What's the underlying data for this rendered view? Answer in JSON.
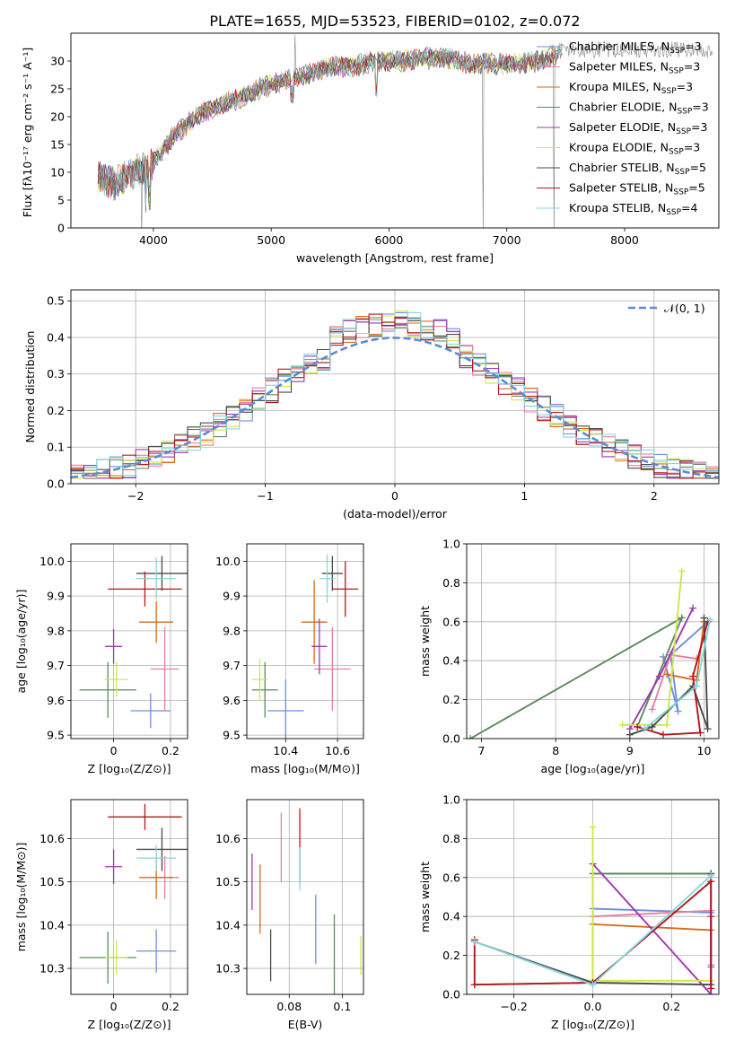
{
  "figure_title": "PLATE=1655, MJD=53523, FIBERID=0102, z=0.072",
  "series_colors": {
    "Chabrier MILES": "#6f8fdc",
    "Salpeter MILES": "#e87fa3",
    "Kroupa MILES": "#d86a1c",
    "Chabrier ELODIE": "#5e8a5e",
    "Salpeter ELODIE": "#9f37b0",
    "Kroupa ELODIE": "#cde64c",
    "Chabrier STELIB": "#4a4a4a",
    "Salpeter STELIB": "#b3171c",
    "Kroupa STELIB": "#87d6dc"
  },
  "chart_data": [
    {
      "id": "spectrum",
      "type": "line",
      "xlabel": "wavelength [Angstrom, rest frame]",
      "ylabel": "Flux [fλ10⁻¹⁷ erg cm⁻² s⁻¹ A⁻¹]",
      "xlim": [
        3300,
        8800
      ],
      "ylim": [
        0,
        35
      ],
      "xticks": [
        4000,
        5000,
        6000,
        7000,
        8000
      ],
      "yticks": [
        0,
        5,
        10,
        15,
        20,
        25,
        30
      ],
      "grid": false,
      "legend_position": "right",
      "legend": [
        {
          "label": "Chabrier MILES, N",
          "sub": "SSP",
          "suffix": "=3"
        },
        {
          "label": "Salpeter MILES, N",
          "sub": "SSP",
          "suffix": "=3"
        },
        {
          "label": "Kroupa MILES, N",
          "sub": "SSP",
          "suffix": "=3"
        },
        {
          "label": "Chabrier ELODIE, N",
          "sub": "SSP",
          "suffix": "=3"
        },
        {
          "label": "Salpeter ELODIE, N",
          "sub": "SSP",
          "suffix": "=3"
        },
        {
          "label": "Kroupa ELODIE, N",
          "sub": "SSP",
          "suffix": "=3"
        },
        {
          "label": "Chabrier STELIB, N",
          "sub": "SSP",
          "suffix": "=5"
        },
        {
          "label": "Salpeter STELIB, N",
          "sub": "SSP",
          "suffix": "=5"
        },
        {
          "label": "Kroupa STELIB, N",
          "sub": "SSP",
          "suffix": "=4"
        }
      ],
      "continuum": {
        "x": [
          3550,
          3650,
          3750,
          3850,
          3950,
          4050,
          4150,
          4250,
          4350,
          4500,
          4700,
          4900,
          5100,
          5300,
          5500,
          5700,
          5900,
          6100,
          6300,
          6500,
          6700,
          6900,
          7100,
          7300,
          7500
        ],
        "y": [
          9,
          8,
          9,
          10,
          11,
          13,
          16,
          18,
          20,
          21.5,
          23,
          25,
          26.5,
          27.5,
          29,
          29,
          30,
          30,
          30.5,
          30.5,
          29.5,
          29.5,
          29.5,
          30,
          32
        ]
      }
    },
    {
      "id": "residuals",
      "type": "histogram",
      "xlabel": "(data-model)/error",
      "ylabel": "Normed distribution",
      "xlim": [
        -2.5,
        2.5
      ],
      "ylim": [
        0,
        0.53
      ],
      "xticks": [
        -2,
        -1,
        0,
        1,
        2
      ],
      "xtick_labels": [
        "−2",
        "−1",
        "0",
        "1",
        "2"
      ],
      "yticks": [
        0.0,
        0.1,
        0.2,
        0.3,
        0.4,
        0.5
      ],
      "grid": true,
      "bin_width": 0.1,
      "legend": [
        "𝒩(0, 1)"
      ],
      "legend_position": "top-right",
      "reference_curve": "gaussian mean 0 sigma 1"
    },
    {
      "id": "age_vs_Z",
      "type": "errorbar",
      "xlabel": "Z [log₁₀(Z/Z⊙)]",
      "ylabel": "age  [log₁₀(age/yr)]",
      "xlim": [
        -0.15,
        0.26
      ],
      "ylim": [
        9.49,
        10.05
      ],
      "xticks": [
        0.0,
        0.2
      ],
      "yticks": [
        9.5,
        9.6,
        9.7,
        9.8,
        9.9,
        10.0
      ],
      "grid": true,
      "points": [
        {
          "series": "Chabrier MILES",
          "x": 0.13,
          "xerr": 0.07,
          "y": 9.57,
          "yerr": 0.05
        },
        {
          "series": "Salpeter MILES",
          "x": 0.18,
          "xerr": 0.05,
          "y": 9.69,
          "yerr": 0.12
        },
        {
          "series": "Kroupa MILES",
          "x": 0.15,
          "xerr": 0.06,
          "y": 9.825,
          "yerr": 0.06
        },
        {
          "series": "Chabrier ELODIE",
          "x": -0.02,
          "xerr": 0.1,
          "y": 9.63,
          "yerr": 0.08
        },
        {
          "series": "Salpeter ELODIE",
          "x": 0.0,
          "xerr": 0.03,
          "y": 9.755,
          "yerr": 0.05
        },
        {
          "series": "Kroupa ELODIE",
          "x": 0.01,
          "xerr": 0.04,
          "y": 9.66,
          "yerr": 0.05
        },
        {
          "series": "Chabrier STELIB",
          "x": 0.17,
          "xerr": 0.09,
          "y": 9.965,
          "yerr": 0.05
        },
        {
          "series": "Salpeter STELIB",
          "x": 0.11,
          "xerr": 0.13,
          "y": 9.92,
          "yerr": 0.05
        },
        {
          "series": "Kroupa STELIB",
          "x": 0.15,
          "xerr": 0.07,
          "y": 9.95,
          "yerr": 0.06
        }
      ]
    },
    {
      "id": "age_vs_mass",
      "type": "errorbar",
      "xlabel": "mass [log₁₀(M/M⊙)]",
      "ylabel": "",
      "xlim": [
        10.25,
        10.7
      ],
      "ylim": [
        9.49,
        10.05
      ],
      "xticks": [
        10.4,
        10.6
      ],
      "yticks": [
        9.5,
        9.6,
        9.7,
        9.8,
        9.9,
        10.0
      ],
      "grid": true,
      "points": [
        {
          "series": "Chabrier MILES",
          "x": 10.4,
          "xerr": 0.07,
          "y": 9.57,
          "yerr": 0.09
        },
        {
          "series": "Salpeter MILES",
          "x": 10.58,
          "xerr": 0.07,
          "y": 9.69,
          "yerr": 0.12
        },
        {
          "series": "Kroupa MILES",
          "x": 10.51,
          "xerr": 0.05,
          "y": 9.825,
          "yerr": 0.12
        },
        {
          "series": "Chabrier ELODIE",
          "x": 10.32,
          "xerr": 0.05,
          "y": 9.63,
          "yerr": 0.08
        },
        {
          "series": "Salpeter ELODIE",
          "x": 10.53,
          "xerr": 0.03,
          "y": 9.755,
          "yerr": 0.08
        },
        {
          "series": "Kroupa ELODIE",
          "x": 10.3,
          "xerr": 0.03,
          "y": 9.66,
          "yerr": 0.06
        },
        {
          "series": "Chabrier STELIB",
          "x": 10.58,
          "xerr": 0.04,
          "y": 9.965,
          "yerr": 0.05
        },
        {
          "series": "Salpeter STELIB",
          "x": 10.63,
          "xerr": 0.05,
          "y": 9.92,
          "yerr": 0.08
        },
        {
          "series": "Kroupa STELIB",
          "x": 10.56,
          "xerr": 0.03,
          "y": 9.95,
          "yerr": 0.07
        }
      ]
    },
    {
      "id": "weight_vs_age",
      "type": "line",
      "xlabel": "age  [log₁₀(age/yr)]",
      "ylabel": "mass weight",
      "xlim": [
        6.8,
        10.2
      ],
      "ylim": [
        0.0,
        1.0
      ],
      "xticks": [
        7,
        8,
        9,
        10
      ],
      "yticks": [
        0.0,
        0.2,
        0.4,
        0.6,
        0.8,
        1.0
      ],
      "grid": true,
      "series": [
        {
          "name": "Chabrier MILES",
          "x": [
            9.45,
            9.65,
            9.55,
            10.05
          ],
          "y": [
            0.42,
            0.14,
            0.43,
            0.6
          ]
        },
        {
          "name": "Salpeter MILES",
          "x": [
            9.3,
            9.55,
            9.9
          ],
          "y": [
            0.15,
            0.43,
            0.41
          ]
        },
        {
          "name": "Kroupa MILES",
          "x": [
            9.5,
            9.9,
            10.0
          ],
          "y": [
            0.33,
            0.3,
            0.6
          ]
        },
        {
          "name": "Chabrier ELODIE",
          "x": [
            6.85,
            9.7,
            9.1
          ],
          "y": [
            0.0,
            0.62,
            0.06
          ]
        },
        {
          "name": "Salpeter ELODIE",
          "x": [
            9.0,
            9.4,
            9.85
          ],
          "y": [
            0.05,
            0.32,
            0.67
          ]
        },
        {
          "name": "Kroupa ELODIE",
          "x": [
            8.9,
            9.5,
            9.7
          ],
          "y": [
            0.07,
            0.07,
            0.86
          ]
        },
        {
          "name": "Chabrier STELIB",
          "x": [
            9.0,
            9.3,
            9.85,
            10.05,
            10.0
          ],
          "y": [
            0.02,
            0.06,
            0.27,
            0.05,
            0.62
          ]
        },
        {
          "name": "Salpeter STELIB",
          "x": [
            9.1,
            9.45,
            9.95,
            9.85,
            10.05
          ],
          "y": [
            0.06,
            0.02,
            0.03,
            0.32,
            0.6
          ]
        },
        {
          "name": "Kroupa STELIB",
          "x": [
            9.2,
            9.9,
            10.08
          ],
          "y": [
            0.05,
            0.27,
            0.61
          ]
        }
      ]
    },
    {
      "id": "mass_vs_Z",
      "type": "errorbar",
      "xlabel": "Z [log₁₀(Z/Z⊙)]",
      "ylabel": "mass [log₁₀(M/M⊙)]",
      "xlim": [
        -0.15,
        0.26
      ],
      "ylim": [
        10.24,
        10.69
      ],
      "xticks": [
        0.0,
        0.2
      ],
      "yticks": [
        10.3,
        10.4,
        10.5,
        10.6
      ],
      "grid": true,
      "points": [
        {
          "series": "Chabrier MILES",
          "x": 0.15,
          "xerr": 0.07,
          "y": 10.34,
          "yerr": 0.05
        },
        {
          "series": "Salpeter MILES",
          "x": 0.18,
          "xerr": 0.05,
          "y": 10.51,
          "yerr": 0.05
        },
        {
          "series": "Kroupa MILES",
          "x": 0.15,
          "xerr": 0.06,
          "y": 10.51,
          "yerr": 0.05
        },
        {
          "series": "Chabrier ELODIE",
          "x": -0.02,
          "xerr": 0.1,
          "y": 10.325,
          "yerr": 0.06
        },
        {
          "series": "Salpeter ELODIE",
          "x": 0.0,
          "xerr": 0.03,
          "y": 10.535,
          "yerr": 0.04
        },
        {
          "series": "Kroupa ELODIE",
          "x": 0.01,
          "xerr": 0.04,
          "y": 10.325,
          "yerr": 0.04
        },
        {
          "series": "Chabrier STELIB",
          "x": 0.17,
          "xerr": 0.09,
          "y": 10.575,
          "yerr": 0.05
        },
        {
          "series": "Salpeter STELIB",
          "x": 0.11,
          "xerr": 0.13,
          "y": 10.65,
          "yerr": 0.03
        },
        {
          "series": "Kroupa STELIB",
          "x": 0.15,
          "xerr": 0.07,
          "y": 10.555,
          "yerr": 0.03
        }
      ]
    },
    {
      "id": "mass_vs_ebv",
      "type": "errorbar",
      "xlabel": "E(B-V)",
      "ylabel": "",
      "xlim": [
        0.064,
        0.108
      ],
      "ylim": [
        10.24,
        10.69
      ],
      "xticks": [
        0.08,
        0.1
      ],
      "yticks": [
        10.3,
        10.4,
        10.5,
        10.6
      ],
      "grid": true,
      "points": [
        {
          "series": "Chabrier MILES",
          "x": 0.09,
          "xerr": 0,
          "y": 10.39,
          "yerr": 0.08
        },
        {
          "series": "Salpeter MILES",
          "x": 0.077,
          "xerr": 0,
          "y": 10.58,
          "yerr": 0.08
        },
        {
          "series": "Kroupa MILES",
          "x": 0.069,
          "xerr": 0,
          "y": 10.46,
          "yerr": 0.08
        },
        {
          "series": "Chabrier ELODIE",
          "x": 0.097,
          "xerr": 0,
          "y": 10.325,
          "yerr": 0.1
        },
        {
          "series": "Salpeter ELODIE",
          "x": 0.066,
          "xerr": 0,
          "y": 10.5,
          "yerr": 0.065
        },
        {
          "series": "Kroupa ELODIE",
          "x": 0.107,
          "xerr": 0,
          "y": 10.33,
          "yerr": 0.045
        },
        {
          "series": "Chabrier STELIB",
          "x": 0.073,
          "xerr": 0,
          "y": 10.33,
          "yerr": 0.06
        },
        {
          "series": "Salpeter STELIB",
          "x": 0.084,
          "xerr": 0,
          "y": 10.585,
          "yerr": 0.085
        },
        {
          "series": "Kroupa STELIB",
          "x": 0.084,
          "xerr": 0,
          "y": 10.53,
          "yerr": 0.05
        }
      ]
    },
    {
      "id": "weight_vs_Z",
      "type": "line",
      "xlabel": "Z [log₁₀(Z/Z⊙)]",
      "ylabel": "mass weight",
      "xlim": [
        -0.32,
        0.32
      ],
      "ylim": [
        0.0,
        1.0
      ],
      "xticks": [
        -0.2,
        0.0,
        0.2
      ],
      "xtick_labels": [
        "−0.2",
        "0.0",
        "0.2"
      ],
      "yticks": [
        0.0,
        0.2,
        0.4,
        0.6,
        0.8,
        1.0
      ],
      "grid": true,
      "series": [
        {
          "name": "Chabrier MILES",
          "x": [
            0.0,
            0.0,
            0.3,
            0.3
          ],
          "y": [
            0.05,
            0.44,
            0.42,
            0.14
          ]
        },
        {
          "name": "Salpeter MILES",
          "x": [
            0.0,
            0.3,
            0.3
          ],
          "y": [
            0.4,
            0.43,
            0.15
          ]
        },
        {
          "name": "Kroupa MILES",
          "x": [
            0.0,
            0.0,
            0.3
          ],
          "y": [
            0.62,
            0.36,
            0.33
          ]
        },
        {
          "name": "Chabrier ELODIE",
          "x": [
            -0.3,
            0.0,
            0.0,
            0.3
          ],
          "y": [
            0.05,
            0.06,
            0.62,
            0.62
          ]
        },
        {
          "name": "Salpeter ELODIE",
          "x": [
            0.0,
            0.3,
            0.3
          ],
          "y": [
            0.67,
            0.0,
            0.4
          ]
        },
        {
          "name": "Kroupa ELODIE",
          "x": [
            0.0,
            0.0,
            0.3
          ],
          "y": [
            0.86,
            0.07,
            0.07
          ]
        },
        {
          "name": "Chabrier STELIB",
          "x": [
            -0.3,
            0.0,
            0.3,
            0.3
          ],
          "y": [
            0.27,
            0.06,
            0.05,
            0.62
          ]
        },
        {
          "name": "Salpeter STELIB",
          "x": [
            -0.3,
            -0.3,
            0.0,
            0.3,
            0.3
          ],
          "y": [
            0.28,
            0.05,
            0.06,
            0.58,
            0.03
          ]
        },
        {
          "name": "Kroupa STELIB",
          "x": [
            -0.3,
            0.0,
            0.3
          ],
          "y": [
            0.27,
            0.05,
            0.61
          ]
        }
      ]
    }
  ]
}
